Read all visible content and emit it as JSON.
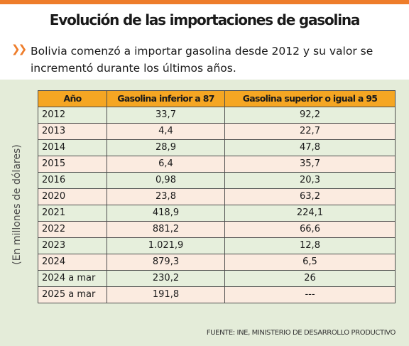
{
  "title": "Evolución de las importaciones de gasolina",
  "subtitle": "Bolivia comenzó a importar gasolina desde 2012 y su valor se incrementó durante los últimos años.",
  "bullet_icon": "double-chevron-right-icon",
  "y_label": "(En millones de dólares)",
  "colors": {
    "accent": "#ee7d2b",
    "header_bg": "#f5a623",
    "panel_bg": "#e4ecd9",
    "row_green": "#e6efdc",
    "row_peach": "#fbebe0"
  },
  "table": {
    "headers": [
      "Año",
      "Gasolina inferior a 87",
      "Gasolina superior o igual a 95"
    ],
    "rows": [
      [
        "2012",
        "33,7",
        "92,2"
      ],
      [
        "2013",
        "4,4",
        "22,7"
      ],
      [
        "2014",
        "28,9",
        "47,8"
      ],
      [
        "2015",
        "6,4",
        "35,7"
      ],
      [
        "2016",
        "0,98",
        "20,3"
      ],
      [
        "2020",
        "23,8",
        "63,2"
      ],
      [
        "2021",
        "418,9",
        "224,1"
      ],
      [
        "2022",
        "881,2",
        "66,6"
      ],
      [
        "2023",
        "1.021,9",
        "12,8"
      ],
      [
        "2024",
        "879,3",
        "6,5"
      ],
      [
        "2024 a mar",
        "230,2",
        "26"
      ],
      [
        "2025 a mar",
        "191,8",
        "---"
      ]
    ]
  },
  "source": "FUENTE: INE, MINISTERIO DE DESARROLLO PRODUCTIVO"
}
